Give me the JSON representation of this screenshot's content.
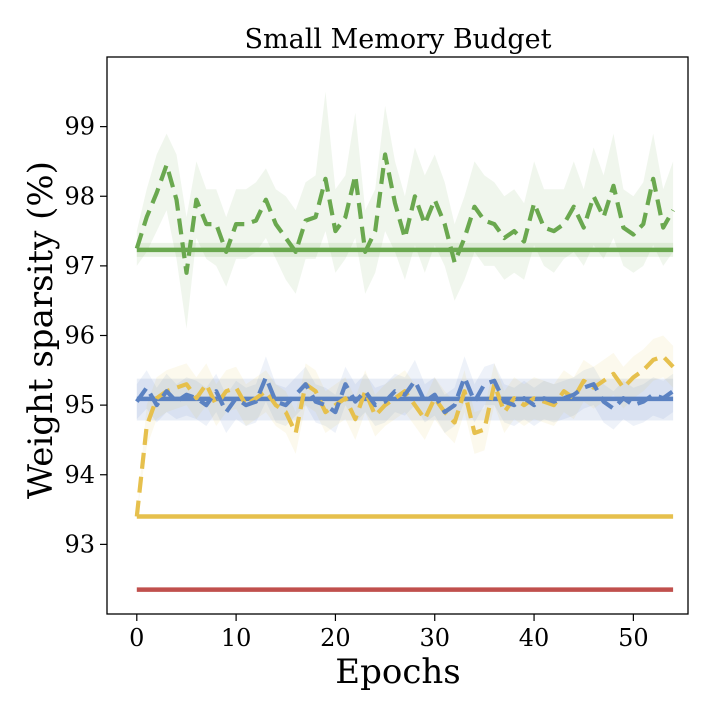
{
  "chart_data": {
    "type": "line",
    "title": "Small Memory Budget",
    "xlabel": "Epochs",
    "ylabel": "Weight sparsity (%)",
    "xlim": [
      -3.0,
      55.5
    ],
    "ylim": [
      92.0,
      100.0
    ],
    "xticks": [
      0,
      10,
      20,
      30,
      40,
      50
    ],
    "yticks": [
      93,
      94,
      95,
      96,
      97,
      98,
      99
    ],
    "grid": false,
    "legend": "none",
    "colors": {
      "green": "#6aa84f",
      "blue": "#5b82c2",
      "yellow": "#e6c04d",
      "red": "#c0504d"
    },
    "series": [
      {
        "name": "green-baseline",
        "style": "solid",
        "color": "green",
        "x": [
          0,
          54
        ],
        "y": [
          97.23,
          97.23
        ],
        "band": [
          97.13,
          97.33
        ]
      },
      {
        "name": "blue-baseline",
        "style": "solid",
        "color": "blue",
        "x": [
          0,
          54
        ],
        "y": [
          95.09,
          95.09
        ],
        "band": [
          94.78,
          95.38
        ]
      },
      {
        "name": "yellow-baseline",
        "style": "solid",
        "color": "yellow",
        "x": [
          0,
          54
        ],
        "y": [
          93.4,
          93.4
        ]
      },
      {
        "name": "red-baseline",
        "style": "solid",
        "color": "red",
        "x": [
          0,
          54
        ],
        "y": [
          92.35,
          92.35
        ]
      },
      {
        "name": "green-dashed",
        "style": "dashed",
        "color": "green",
        "x": [
          0,
          1,
          2,
          3,
          4,
          5,
          6,
          7,
          8,
          9,
          10,
          11,
          12,
          13,
          14,
          15,
          16,
          17,
          18,
          19,
          20,
          21,
          22,
          23,
          24,
          25,
          26,
          27,
          28,
          29,
          30,
          31,
          32,
          33,
          34,
          35,
          36,
          37,
          38,
          39,
          40,
          41,
          42,
          43,
          44,
          45,
          46,
          47,
          48,
          49,
          50,
          51,
          52,
          53,
          54
        ],
        "y": [
          97.25,
          97.7,
          98.05,
          98.45,
          97.95,
          96.9,
          97.95,
          97.6,
          97.6,
          97.2,
          97.6,
          97.6,
          97.65,
          97.95,
          97.6,
          97.4,
          97.2,
          97.65,
          97.7,
          98.25,
          97.5,
          97.7,
          98.3,
          97.2,
          97.5,
          98.6,
          97.9,
          97.4,
          98.0,
          97.6,
          97.95,
          97.6,
          97.05,
          97.4,
          97.85,
          97.65,
          97.6,
          97.4,
          97.5,
          97.35,
          97.9,
          97.55,
          97.5,
          97.6,
          97.85,
          97.55,
          98.0,
          97.7,
          98.15,
          97.55,
          97.45,
          97.6,
          98.25,
          97.55,
          97.8
        ],
        "band_low": [
          97.0,
          97.2,
          97.5,
          97.8,
          97.1,
          96.1,
          97.4,
          97.1,
          97.0,
          96.7,
          97.1,
          97.1,
          97.2,
          97.4,
          97.1,
          96.8,
          96.6,
          97.1,
          97.1,
          97.5,
          96.9,
          97.1,
          97.4,
          96.6,
          96.9,
          97.5,
          97.2,
          96.8,
          97.3,
          96.9,
          97.3,
          97.0,
          96.5,
          96.8,
          97.2,
          97.0,
          97.0,
          96.8,
          96.9,
          96.8,
          97.3,
          97.0,
          96.9,
          97.1,
          97.2,
          97.0,
          97.3,
          97.1,
          97.4,
          97.0,
          96.9,
          97.0,
          97.3,
          97.0,
          97.2
        ],
        "band_high": [
          97.5,
          98.1,
          98.6,
          98.9,
          98.6,
          97.7,
          98.5,
          98.1,
          98.1,
          97.7,
          98.1,
          98.1,
          98.2,
          98.4,
          98.1,
          98.0,
          97.8,
          98.2,
          98.3,
          99.5,
          98.1,
          98.3,
          99.2,
          97.8,
          98.1,
          99.3,
          98.5,
          98.0,
          98.7,
          98.3,
          98.6,
          98.2,
          97.6,
          98.0,
          98.5,
          98.3,
          98.2,
          98.0,
          98.1,
          97.9,
          98.5,
          98.1,
          98.1,
          98.1,
          98.5,
          98.1,
          98.7,
          98.3,
          98.9,
          98.1,
          98.0,
          98.2,
          98.9,
          98.1,
          98.5
        ]
      },
      {
        "name": "blue-dashed",
        "style": "dashed",
        "color": "blue",
        "x": [
          0,
          1,
          2,
          3,
          4,
          5,
          6,
          7,
          8,
          9,
          10,
          11,
          12,
          13,
          14,
          15,
          16,
          17,
          18,
          19,
          20,
          21,
          22,
          23,
          24,
          25,
          26,
          27,
          28,
          29,
          30,
          31,
          32,
          33,
          34,
          35,
          36,
          37,
          38,
          39,
          40,
          41,
          42,
          43,
          44,
          45,
          46,
          47,
          48,
          49,
          50,
          51,
          52,
          53,
          54
        ],
        "y": [
          95.05,
          95.25,
          95.0,
          95.2,
          95.05,
          95.15,
          95.1,
          95.0,
          95.2,
          94.9,
          95.1,
          95.0,
          95.05,
          95.4,
          95.05,
          95.0,
          95.15,
          95.3,
          95.05,
          95.0,
          94.9,
          95.3,
          95.05,
          95.2,
          95.0,
          95.05,
          95.2,
          95.15,
          95.35,
          95.05,
          95.15,
          94.9,
          95.0,
          95.4,
          95.05,
          95.3,
          95.35,
          95.05,
          95.0,
          95.1,
          95.0,
          95.1,
          95.05,
          95.1,
          95.15,
          95.25,
          95.3,
          95.05,
          94.95,
          95.1,
          95.0,
          95.05,
          95.15,
          95.1,
          95.2
        ],
        "band_low": [
          94.8,
          94.95,
          94.75,
          94.9,
          94.8,
          94.85,
          94.8,
          94.7,
          94.9,
          94.6,
          94.8,
          94.7,
          94.75,
          95.05,
          94.75,
          94.7,
          94.85,
          95.0,
          94.75,
          94.7,
          94.6,
          95.0,
          94.75,
          94.9,
          94.7,
          94.75,
          94.9,
          94.85,
          95.0,
          94.75,
          94.85,
          94.6,
          94.7,
          95.05,
          94.75,
          95.0,
          95.0,
          94.75,
          94.7,
          94.8,
          94.7,
          94.8,
          94.75,
          94.8,
          94.85,
          94.95,
          95.0,
          94.75,
          94.65,
          94.8,
          94.7,
          94.75,
          94.85,
          94.8,
          94.9
        ],
        "band_high": [
          95.3,
          95.5,
          95.25,
          95.45,
          95.3,
          95.4,
          95.35,
          95.25,
          95.45,
          95.15,
          95.35,
          95.25,
          95.3,
          95.7,
          95.3,
          95.25,
          95.4,
          95.55,
          95.3,
          95.25,
          95.15,
          95.55,
          95.3,
          95.45,
          95.25,
          95.3,
          95.45,
          95.4,
          95.65,
          95.3,
          95.4,
          95.15,
          95.25,
          95.7,
          95.3,
          95.55,
          95.6,
          95.3,
          95.25,
          95.35,
          95.25,
          95.35,
          95.3,
          95.35,
          95.4,
          95.5,
          95.55,
          95.3,
          95.2,
          95.35,
          95.25,
          95.3,
          95.4,
          95.35,
          95.45
        ]
      },
      {
        "name": "yellow-dashed",
        "style": "dashed",
        "color": "yellow",
        "x": [
          0,
          1,
          2,
          3,
          4,
          5,
          6,
          7,
          8,
          9,
          10,
          11,
          12,
          13,
          14,
          15,
          16,
          17,
          18,
          19,
          20,
          21,
          22,
          23,
          24,
          25,
          26,
          27,
          28,
          29,
          30,
          31,
          32,
          33,
          34,
          35,
          36,
          37,
          38,
          39,
          40,
          41,
          42,
          43,
          44,
          45,
          46,
          47,
          48,
          49,
          50,
          51,
          52,
          53,
          54
        ],
        "y": [
          93.4,
          94.7,
          95.1,
          95.2,
          95.25,
          95.3,
          95.1,
          95.3,
          95.0,
          95.2,
          95.25,
          95.0,
          95.1,
          95.2,
          95.0,
          94.9,
          94.6,
          95.3,
          95.2,
          94.9,
          95.0,
          95.1,
          94.8,
          95.2,
          94.85,
          95.0,
          95.1,
          95.2,
          95.0,
          94.8,
          95.1,
          94.9,
          94.75,
          95.2,
          94.6,
          94.65,
          95.3,
          94.9,
          95.1,
          95.0,
          95.1,
          95.05,
          95.0,
          95.2,
          95.1,
          95.35,
          95.25,
          95.35,
          95.45,
          95.25,
          95.4,
          95.5,
          95.65,
          95.7,
          95.55
        ],
        "band_low": [
          93.4,
          94.4,
          94.8,
          94.9,
          94.95,
          95.0,
          94.8,
          95.0,
          94.7,
          94.9,
          94.95,
          94.7,
          94.8,
          94.9,
          94.7,
          94.6,
          94.3,
          95.0,
          94.9,
          94.6,
          94.7,
          94.8,
          94.5,
          94.9,
          94.55,
          94.7,
          94.8,
          94.9,
          94.7,
          94.5,
          94.8,
          94.6,
          94.45,
          94.9,
          94.3,
          94.35,
          95.0,
          94.6,
          94.8,
          94.7,
          94.8,
          94.75,
          94.7,
          94.9,
          94.8,
          95.05,
          94.95,
          95.05,
          95.15,
          94.95,
          95.1,
          95.2,
          95.35,
          95.4,
          95.25
        ],
        "band_high": [
          93.4,
          95.0,
          95.4,
          95.5,
          95.55,
          95.6,
          95.4,
          95.6,
          95.3,
          95.5,
          95.55,
          95.3,
          95.4,
          95.5,
          95.3,
          95.2,
          94.9,
          95.6,
          95.5,
          95.2,
          95.3,
          95.4,
          95.1,
          95.5,
          95.15,
          95.3,
          95.4,
          95.5,
          95.3,
          95.1,
          95.4,
          95.2,
          95.05,
          95.5,
          94.9,
          94.95,
          95.6,
          95.2,
          95.4,
          95.3,
          95.4,
          95.35,
          95.3,
          95.5,
          95.4,
          95.65,
          95.55,
          95.65,
          95.75,
          95.55,
          95.7,
          95.8,
          95.95,
          96.0,
          95.85
        ]
      }
    ]
  }
}
